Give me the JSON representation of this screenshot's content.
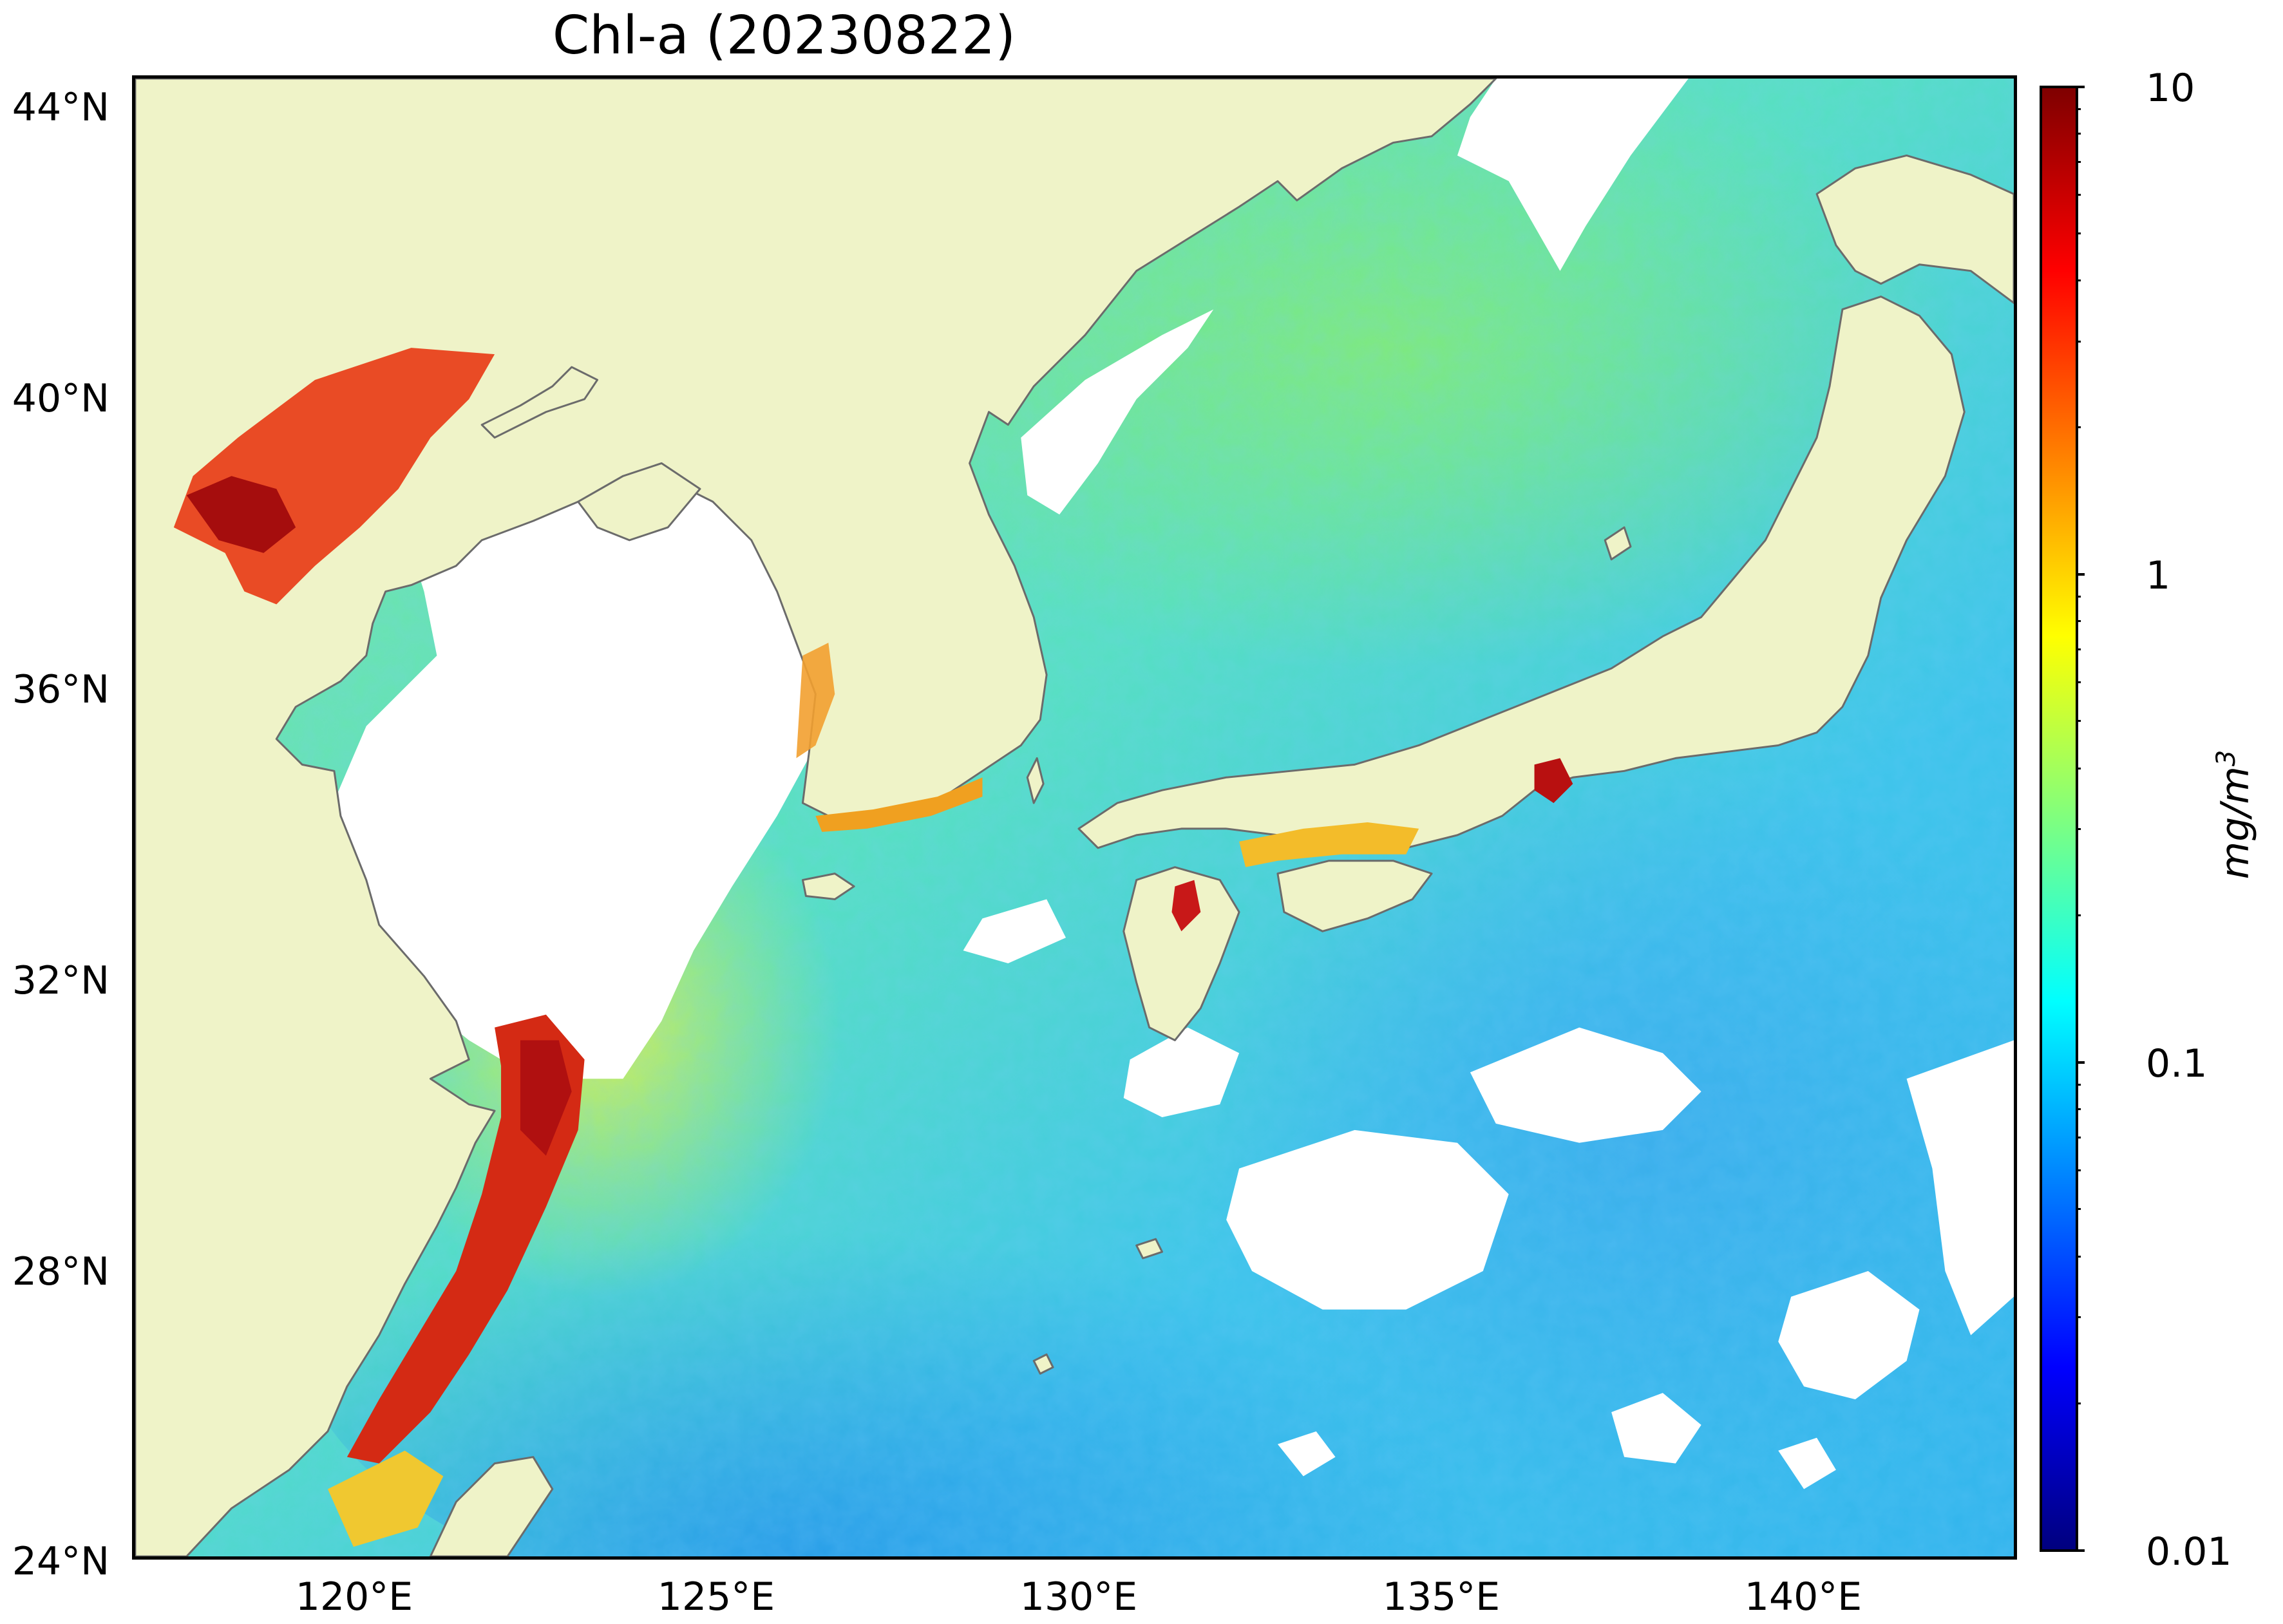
{
  "title": "Chl-a (20230822)",
  "axes": {
    "lat_labels": [
      "44°N",
      "40°N",
      "36°N",
      "32°N",
      "28°N",
      "24°N"
    ],
    "lon_labels": [
      "120°E",
      "125°E",
      "130°E",
      "135°E",
      "140°E"
    ]
  },
  "colorbar": {
    "labels": [
      "10",
      "1",
      "0.1",
      "0.01"
    ],
    "unit_main": "mg/m",
    "unit_sup": "3",
    "colormap": [
      "#00007f",
      "#0000ff",
      "#007fff",
      "#00ffff",
      "#7fff7f",
      "#ffff00",
      "#ff7f00",
      "#ff0000",
      "#7f0000"
    ]
  },
  "colors": {
    "land": "#eff3c8",
    "coast": "#6b6b6b",
    "nodata": "#ffffff"
  },
  "chart_data": {
    "type": "heatmap",
    "title": "Chl-a (20230822)",
    "x_axis": {
      "range": [
        117,
        143
      ],
      "ticks": [
        120,
        125,
        130,
        135,
        140
      ]
    },
    "y_axis": {
      "range": [
        24,
        44.4
      ],
      "ticks": [
        24,
        28,
        32,
        36,
        40,
        44
      ]
    },
    "colorbar": {
      "scale": "log",
      "range": [
        0.01,
        10
      ],
      "ticks": [
        0.01,
        0.1,
        1,
        10
      ]
    }
  }
}
